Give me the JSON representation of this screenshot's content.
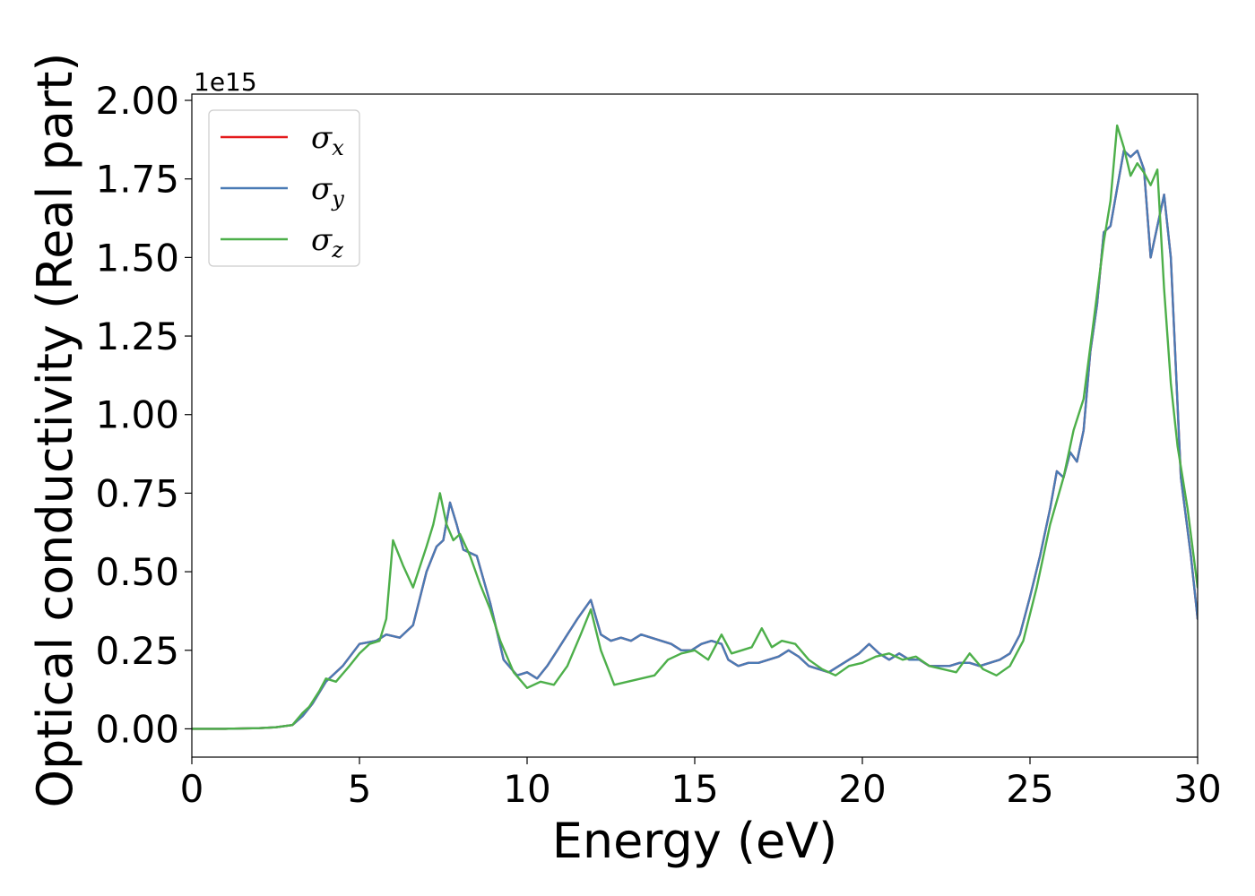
{
  "chart_data": {
    "type": "line",
    "title": "",
    "xlabel": "Energy (eV)",
    "ylabel": "Optical conductivity (Real part)",
    "y_offset_label": "1e15",
    "xlim": [
      0,
      30
    ],
    "ylim": [
      -0.09,
      2.02
    ],
    "xticks": [
      0,
      5,
      10,
      15,
      20,
      25,
      30
    ],
    "xtick_labels": [
      "0",
      "5",
      "10",
      "15",
      "20",
      "25",
      "30"
    ],
    "yticks": [
      0,
      0.25,
      0.5,
      0.75,
      1.0,
      1.25,
      1.5,
      1.75,
      2.0
    ],
    "ytick_labels": [
      "0.00",
      "0.25",
      "0.50",
      "0.75",
      "1.00",
      "1.25",
      "1.50",
      "1.75",
      "2.00"
    ],
    "grid": false,
    "legend_position": "top-left",
    "series": [
      {
        "name": "σx",
        "symbol": "σ",
        "subscript": "x",
        "color": "#e41a1c",
        "x": [
          0,
          1,
          2,
          2.5,
          3.0,
          3.3,
          3.6,
          4.0,
          4.5,
          5.0,
          5.5,
          5.8,
          6.2,
          6.6,
          7.0,
          7.3,
          7.5,
          7.7,
          7.9,
          8.1,
          8.5,
          8.9,
          9.3,
          9.7,
          10.0,
          10.3,
          10.6,
          10.9,
          11.2,
          11.5,
          11.9,
          12.2,
          12.5,
          12.8,
          13.1,
          13.4,
          13.7,
          14.0,
          14.3,
          14.6,
          14.9,
          15.2,
          15.5,
          15.8,
          16.0,
          16.3,
          16.6,
          16.9,
          17.2,
          17.5,
          17.8,
          18.1,
          18.4,
          18.7,
          19.0,
          19.3,
          19.6,
          19.9,
          20.2,
          20.5,
          20.8,
          21.1,
          21.4,
          21.7,
          22.0,
          22.3,
          22.6,
          22.9,
          23.2,
          23.5,
          23.8,
          24.1,
          24.4,
          24.7,
          25.0,
          25.3,
          25.6,
          25.8,
          26.0,
          26.2,
          26.4,
          26.6,
          26.8,
          27.0,
          27.2,
          27.4,
          27.6,
          27.8,
          28.0,
          28.2,
          28.4,
          28.6,
          28.8,
          29.0,
          29.2,
          29.5,
          29.8,
          30.0
        ],
        "y": [
          0.0,
          0.0,
          0.002,
          0.005,
          0.012,
          0.04,
          0.08,
          0.15,
          0.2,
          0.27,
          0.28,
          0.3,
          0.29,
          0.33,
          0.5,
          0.58,
          0.6,
          0.72,
          0.65,
          0.57,
          0.55,
          0.4,
          0.22,
          0.17,
          0.18,
          0.16,
          0.2,
          0.25,
          0.3,
          0.35,
          0.41,
          0.3,
          0.28,
          0.29,
          0.28,
          0.3,
          0.29,
          0.28,
          0.27,
          0.25,
          0.25,
          0.27,
          0.28,
          0.27,
          0.22,
          0.2,
          0.21,
          0.21,
          0.22,
          0.23,
          0.25,
          0.23,
          0.2,
          0.19,
          0.18,
          0.2,
          0.22,
          0.24,
          0.27,
          0.24,
          0.22,
          0.24,
          0.22,
          0.22,
          0.2,
          0.2,
          0.2,
          0.21,
          0.21,
          0.2,
          0.21,
          0.22,
          0.24,
          0.3,
          0.42,
          0.55,
          0.7,
          0.82,
          0.8,
          0.88,
          0.85,
          0.95,
          1.2,
          1.35,
          1.58,
          1.6,
          1.72,
          1.84,
          1.82,
          1.84,
          1.78,
          1.5,
          1.6,
          1.7,
          1.5,
          0.8,
          0.55,
          0.35
        ]
      },
      {
        "name": "σy",
        "symbol": "σ",
        "subscript": "y",
        "color": "#4a7bb5",
        "x": [
          0,
          1,
          2,
          2.5,
          3.0,
          3.3,
          3.6,
          4.0,
          4.5,
          5.0,
          5.5,
          5.8,
          6.2,
          6.6,
          7.0,
          7.3,
          7.5,
          7.7,
          7.9,
          8.1,
          8.5,
          8.9,
          9.3,
          9.7,
          10.0,
          10.3,
          10.6,
          10.9,
          11.2,
          11.5,
          11.9,
          12.2,
          12.5,
          12.8,
          13.1,
          13.4,
          13.7,
          14.0,
          14.3,
          14.6,
          14.9,
          15.2,
          15.5,
          15.8,
          16.0,
          16.3,
          16.6,
          16.9,
          17.2,
          17.5,
          17.8,
          18.1,
          18.4,
          18.7,
          19.0,
          19.3,
          19.6,
          19.9,
          20.2,
          20.5,
          20.8,
          21.1,
          21.4,
          21.7,
          22.0,
          22.3,
          22.6,
          22.9,
          23.2,
          23.5,
          23.8,
          24.1,
          24.4,
          24.7,
          25.0,
          25.3,
          25.6,
          25.8,
          26.0,
          26.2,
          26.4,
          26.6,
          26.8,
          27.0,
          27.2,
          27.4,
          27.6,
          27.8,
          28.0,
          28.2,
          28.4,
          28.6,
          28.8,
          29.0,
          29.2,
          29.5,
          29.8,
          30.0
        ],
        "y": [
          0.0,
          0.0,
          0.002,
          0.005,
          0.012,
          0.04,
          0.08,
          0.15,
          0.2,
          0.27,
          0.28,
          0.3,
          0.29,
          0.33,
          0.5,
          0.58,
          0.6,
          0.72,
          0.65,
          0.57,
          0.55,
          0.4,
          0.22,
          0.17,
          0.18,
          0.16,
          0.2,
          0.25,
          0.3,
          0.35,
          0.41,
          0.3,
          0.28,
          0.29,
          0.28,
          0.3,
          0.29,
          0.28,
          0.27,
          0.25,
          0.25,
          0.27,
          0.28,
          0.27,
          0.22,
          0.2,
          0.21,
          0.21,
          0.22,
          0.23,
          0.25,
          0.23,
          0.2,
          0.19,
          0.18,
          0.2,
          0.22,
          0.24,
          0.27,
          0.24,
          0.22,
          0.24,
          0.22,
          0.22,
          0.2,
          0.2,
          0.2,
          0.21,
          0.21,
          0.2,
          0.21,
          0.22,
          0.24,
          0.3,
          0.42,
          0.55,
          0.7,
          0.82,
          0.8,
          0.88,
          0.85,
          0.95,
          1.2,
          1.35,
          1.58,
          1.6,
          1.72,
          1.84,
          1.82,
          1.84,
          1.78,
          1.5,
          1.6,
          1.7,
          1.5,
          0.8,
          0.55,
          0.35
        ]
      },
      {
        "name": "σz",
        "symbol": "σ",
        "subscript": "z",
        "color": "#4daf4a",
        "x": [
          0,
          1,
          2,
          2.5,
          3.0,
          3.3,
          3.5,
          3.8,
          4.0,
          4.3,
          4.7,
          5.0,
          5.3,
          5.6,
          5.8,
          6.0,
          6.3,
          6.6,
          7.0,
          7.2,
          7.4,
          7.6,
          7.8,
          8.0,
          8.3,
          8.6,
          8.9,
          9.2,
          9.6,
          10.0,
          10.4,
          10.8,
          11.2,
          11.6,
          11.9,
          12.2,
          12.6,
          13.0,
          13.4,
          13.8,
          14.2,
          14.6,
          15.0,
          15.4,
          15.8,
          16.1,
          16.4,
          16.7,
          17.0,
          17.3,
          17.6,
          18.0,
          18.4,
          18.8,
          19.2,
          19.6,
          20.0,
          20.4,
          20.8,
          21.2,
          21.6,
          22.0,
          22.4,
          22.8,
          23.2,
          23.6,
          24.0,
          24.4,
          24.8,
          25.2,
          25.6,
          26.0,
          26.3,
          26.6,
          26.9,
          27.2,
          27.4,
          27.6,
          27.8,
          28.0,
          28.2,
          28.4,
          28.6,
          28.8,
          29.0,
          29.2,
          29.4,
          29.7,
          30.0
        ],
        "y": [
          0.0,
          0.0,
          0.002,
          0.005,
          0.012,
          0.05,
          0.07,
          0.12,
          0.16,
          0.15,
          0.2,
          0.24,
          0.27,
          0.28,
          0.35,
          0.6,
          0.52,
          0.45,
          0.58,
          0.65,
          0.75,
          0.65,
          0.6,
          0.62,
          0.55,
          0.46,
          0.38,
          0.28,
          0.18,
          0.13,
          0.15,
          0.14,
          0.2,
          0.3,
          0.38,
          0.25,
          0.14,
          0.15,
          0.16,
          0.17,
          0.22,
          0.24,
          0.25,
          0.22,
          0.3,
          0.24,
          0.25,
          0.26,
          0.32,
          0.26,
          0.28,
          0.27,
          0.22,
          0.19,
          0.17,
          0.2,
          0.21,
          0.23,
          0.24,
          0.22,
          0.23,
          0.2,
          0.19,
          0.18,
          0.24,
          0.19,
          0.17,
          0.2,
          0.28,
          0.45,
          0.65,
          0.8,
          0.95,
          1.05,
          1.3,
          1.55,
          1.68,
          1.92,
          1.85,
          1.76,
          1.8,
          1.77,
          1.73,
          1.78,
          1.4,
          1.1,
          0.9,
          0.7,
          0.45
        ]
      }
    ]
  }
}
